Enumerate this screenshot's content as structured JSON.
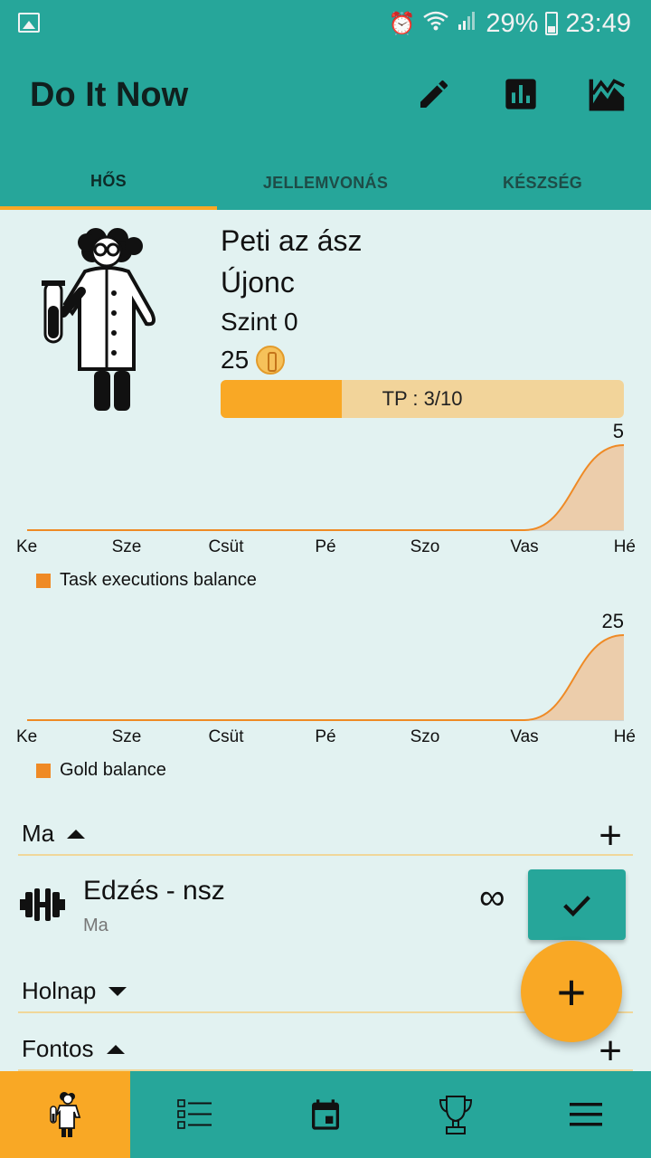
{
  "status_bar": {
    "battery": "29%",
    "time": "23:49"
  },
  "app": {
    "title": "Do It Now"
  },
  "toolbar": {
    "edit_icon": "pencil-icon",
    "stats_icon": "bar-chart-icon",
    "trend_icon": "line-chart-icon"
  },
  "tabs": [
    {
      "label": "HŐS",
      "active": true
    },
    {
      "label": "JELLEMVONÁS",
      "active": false
    },
    {
      "label": "KÉSZSÉG",
      "active": false
    }
  ],
  "hero": {
    "name": "Peti az ász",
    "rank": "Újonc",
    "level": "Szint 0",
    "gold": "25",
    "tp_text": "TP : 3/10",
    "tp_progress": 0.3
  },
  "chart_data": [
    {
      "type": "area",
      "categories": [
        "Ke",
        "Sze",
        "Csüt",
        "Pé",
        "Szo",
        "Vas",
        "Hé"
      ],
      "series": [
        {
          "name": "Task executions balance",
          "values": [
            0,
            0,
            0,
            0,
            0,
            0,
            5
          ]
        }
      ],
      "peak_label": "5",
      "color": "#ef8a25"
    },
    {
      "type": "area",
      "categories": [
        "Ke",
        "Sze",
        "Csüt",
        "Pé",
        "Szo",
        "Vas",
        "Hé"
      ],
      "series": [
        {
          "name": "Gold balance",
          "values": [
            0,
            0,
            0,
            0,
            0,
            0,
            25
          ]
        }
      ],
      "peak_label": "25",
      "color": "#ef8a25"
    }
  ],
  "sections": {
    "today": {
      "label": "Ma",
      "expanded": true
    },
    "tomorrow": {
      "label": "Holnap",
      "expanded": false
    },
    "important": {
      "label": "Fontos",
      "expanded": true
    }
  },
  "task": {
    "title": "Edzés - nsz",
    "subtitle": "Ma",
    "repeat_symbol": "∞",
    "icon": "dumbbell-icon"
  },
  "fab": {
    "label": "+"
  },
  "bottom_nav": [
    {
      "name": "hero-icon",
      "active": true
    },
    {
      "name": "checklist-icon",
      "active": false
    },
    {
      "name": "calendar-icon",
      "active": false
    },
    {
      "name": "trophy-icon",
      "active": false
    },
    {
      "name": "menu-icon",
      "active": false
    }
  ],
  "colors": {
    "primary": "#26a69a",
    "accent": "#f9a825",
    "background": "#e2f2f1",
    "chart_line": "#ef8a25",
    "chart_fill": "#eccaa6"
  }
}
